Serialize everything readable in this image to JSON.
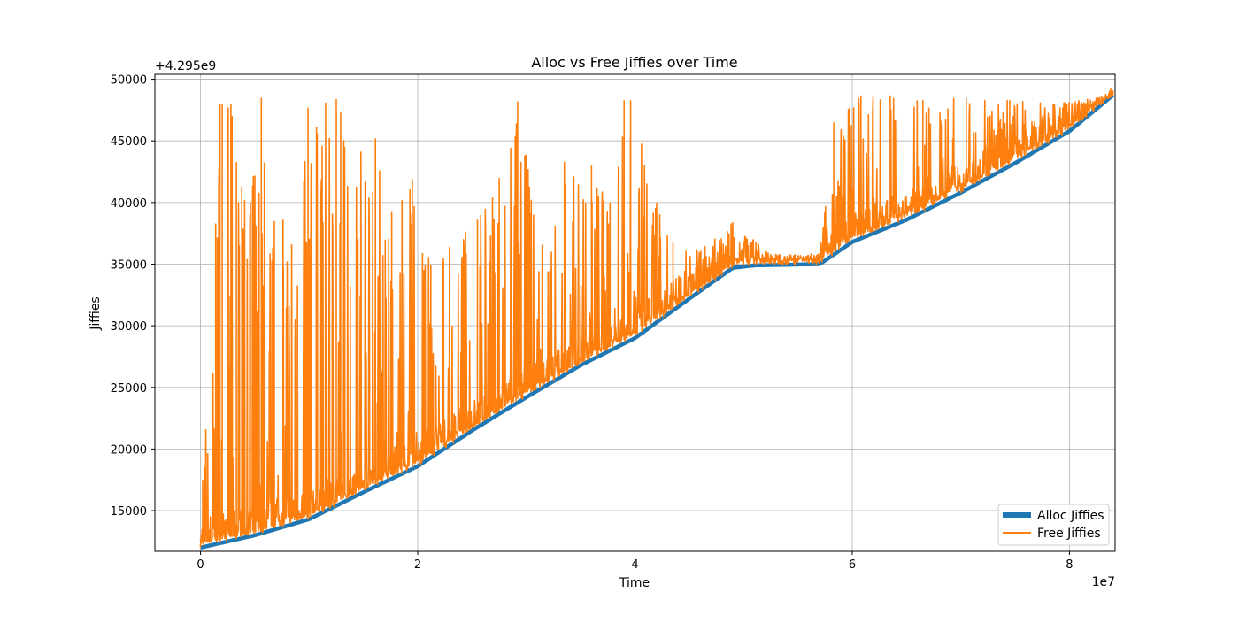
{
  "chart_data": {
    "type": "line",
    "title": "Alloc vs Free Jiffies over Time",
    "xlabel": "Time",
    "ylabel": "Jiffies",
    "x_offset_label": "1e7",
    "y_offset_label": "+4.295e9",
    "xlim": [
      -0.42,
      8.42
    ],
    "ylim": [
      11700,
      50400
    ],
    "x_ticks": [
      0,
      2,
      4,
      6,
      8
    ],
    "x_tick_labels": [
      "0",
      "2",
      "4",
      "6",
      "8"
    ],
    "y_ticks": [
      15000,
      20000,
      25000,
      30000,
      35000,
      40000,
      45000,
      50000
    ],
    "y_tick_labels": [
      "15000",
      "20000",
      "25000",
      "30000",
      "35000",
      "40000",
      "45000",
      "50000"
    ],
    "grid": true,
    "legend_position": "lower-right",
    "series": [
      {
        "name": "Alloc Jiffies",
        "color": "#1f77b4",
        "style": "thick",
        "x": [
          0,
          0.5,
          1.0,
          1.5,
          2.0,
          2.5,
          3.0,
          3.5,
          4.0,
          4.5,
          4.9,
          5.1,
          5.7,
          6.0,
          6.5,
          7.0,
          7.5,
          8.0,
          8.4
        ],
        "y": [
          12000,
          13000,
          14300,
          16500,
          18600,
          21500,
          24200,
          26800,
          29000,
          32200,
          34700,
          34900,
          35000,
          36800,
          38600,
          40800,
          43200,
          45800,
          48700
        ]
      },
      {
        "name": "Free Jiffies",
        "color": "#ff7f0e",
        "style": "thin-spiky",
        "x": [
          0,
          0.02,
          0.14,
          0.18,
          0.2,
          0.28,
          0.33,
          0.38,
          0.46,
          0.56,
          0.68,
          0.76,
          0.99,
          1.25,
          1.29,
          1.61,
          1.76,
          1.95,
          2.12,
          2.55,
          2.75,
          2.92,
          3.2,
          3.35,
          3.6,
          3.77,
          3.9,
          3.96,
          4.2,
          4.35,
          4.64,
          4.9,
          5.25,
          5.7,
          5.83,
          6.08,
          6.35,
          6.65,
          7.05,
          7.45,
          7.85,
          8.4
        ],
        "y": [
          12000,
          17500,
          38300,
          48000,
          48000,
          48000,
          43300,
          41300,
          40000,
          48500,
          38500,
          38600,
          47700,
          48400,
          47300,
          45200,
          39300,
          41900,
          34900,
          38600,
          42000,
          48200,
          34400,
          43300,
          43000,
          40000,
          48300,
          48300,
          40000,
          36800,
          36500,
          38400,
          35800,
          35900,
          46500,
          48700,
          48700,
          48300,
          48500,
          48300,
          48000,
          48700
        ]
      }
    ]
  }
}
